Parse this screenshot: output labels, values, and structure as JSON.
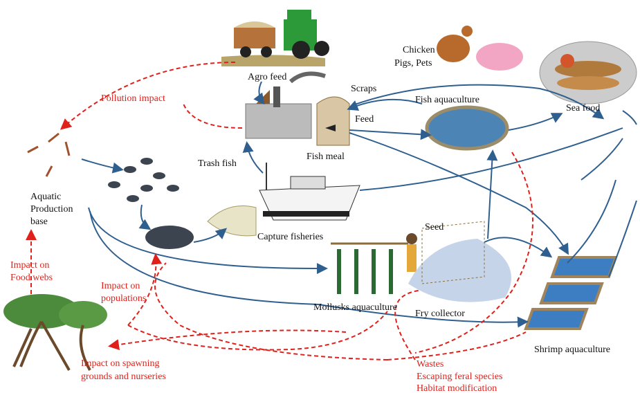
{
  "labels": {
    "agro_feed": "Agro feed",
    "pollution_impact": "Pollution impact",
    "scraps": "Scraps",
    "feed": "Feed",
    "fish_meal": "Fish meal",
    "trash_fish": "Trash fish",
    "chicken": [
      "Chicken",
      "Pigs, Pets"
    ],
    "fish_aquaculture": "Fish aquaculture",
    "sea_food": "Sea food",
    "aquatic_production_base": [
      "Aquatic",
      "Production",
      "base"
    ],
    "capture_fisheries": "Capture fisheries",
    "seed": "Seed",
    "mollusks_aquaculture": "Mollusks aquaculture",
    "fry_collector": "Fry collector",
    "shrimp_aquaculture": "Shrimp aquaculture"
  },
  "impacts": {
    "food_webs": [
      "Impact on",
      "Food webs"
    ],
    "populations": [
      "Impact on",
      "populations"
    ],
    "spawning": [
      "Impact on spawning",
      "grounds and nurseries"
    ],
    "wastes": [
      "Wastes",
      "Escaping feral species",
      "Habitat modification"
    ]
  }
}
